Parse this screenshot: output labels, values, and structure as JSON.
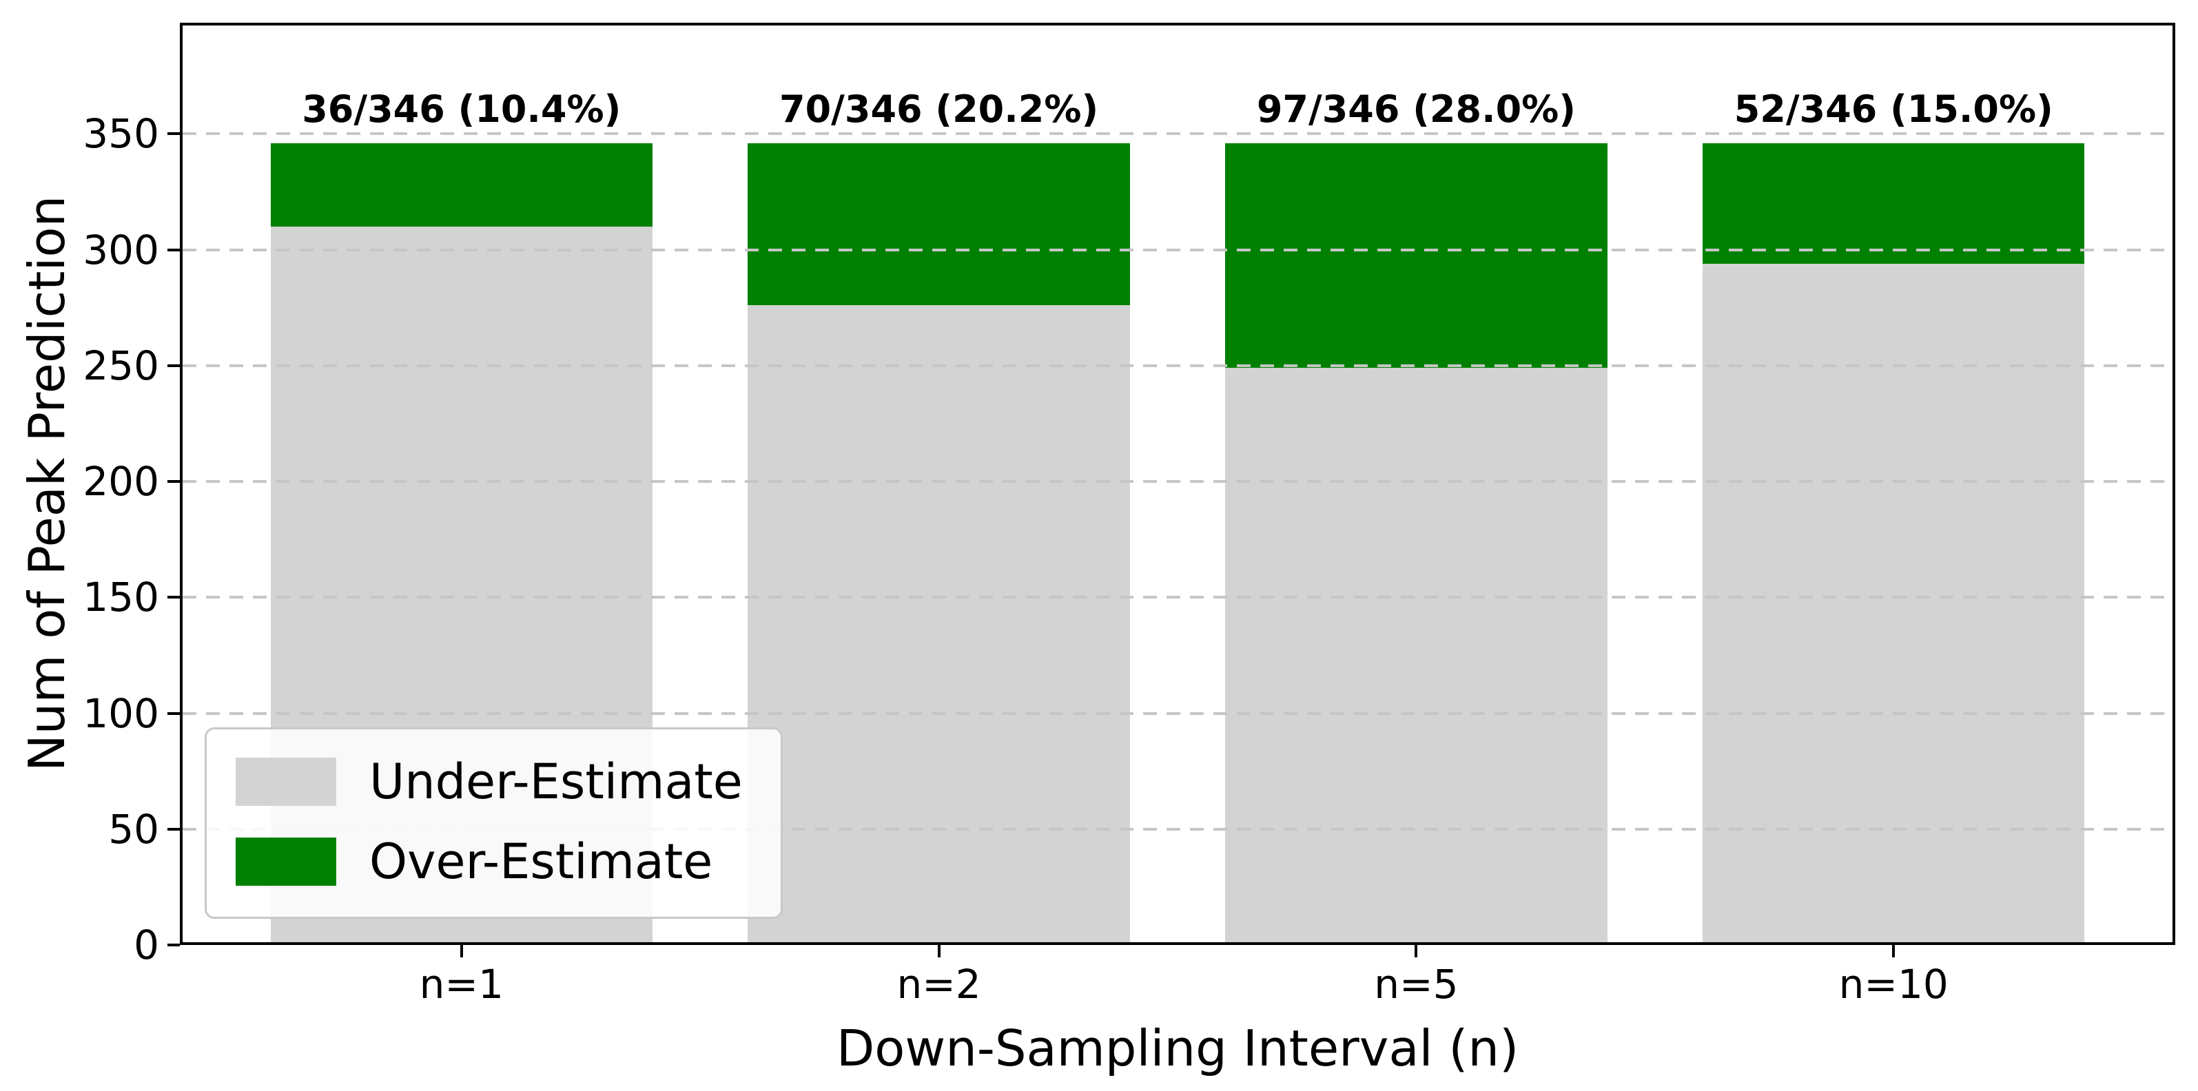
{
  "chart_data": {
    "type": "bar",
    "stacked": true,
    "title": "",
    "xlabel": "Down-Sampling Interval (n)",
    "ylabel": "Num of Peak Prediction",
    "categories": [
      "n=1",
      "n=2",
      "n=5",
      "n=10"
    ],
    "series": [
      {
        "name": "Under-Estimate",
        "color": "#d3d3d3",
        "values": [
          310,
          276,
          249,
          294
        ]
      },
      {
        "name": "Over-Estimate",
        "color": "#008000",
        "values": [
          36,
          70,
          97,
          52
        ]
      }
    ],
    "totals": [
      346,
      346,
      346,
      346
    ],
    "bar_labels": [
      "36/346 (10.4%)",
      "70/346 (20.2%)",
      "97/346 (28.0%)",
      "52/346 (15.0%)"
    ],
    "yticks": [
      0,
      50,
      100,
      150,
      200,
      250,
      300,
      350
    ],
    "ylim": [
      0,
      398
    ],
    "grid": {
      "axis": "y",
      "style": "dashed",
      "color": "#c6c6c6",
      "on_top": true
    },
    "legend": {
      "position": "lower-left",
      "entries": [
        "Under-Estimate",
        "Over-Estimate"
      ]
    }
  }
}
